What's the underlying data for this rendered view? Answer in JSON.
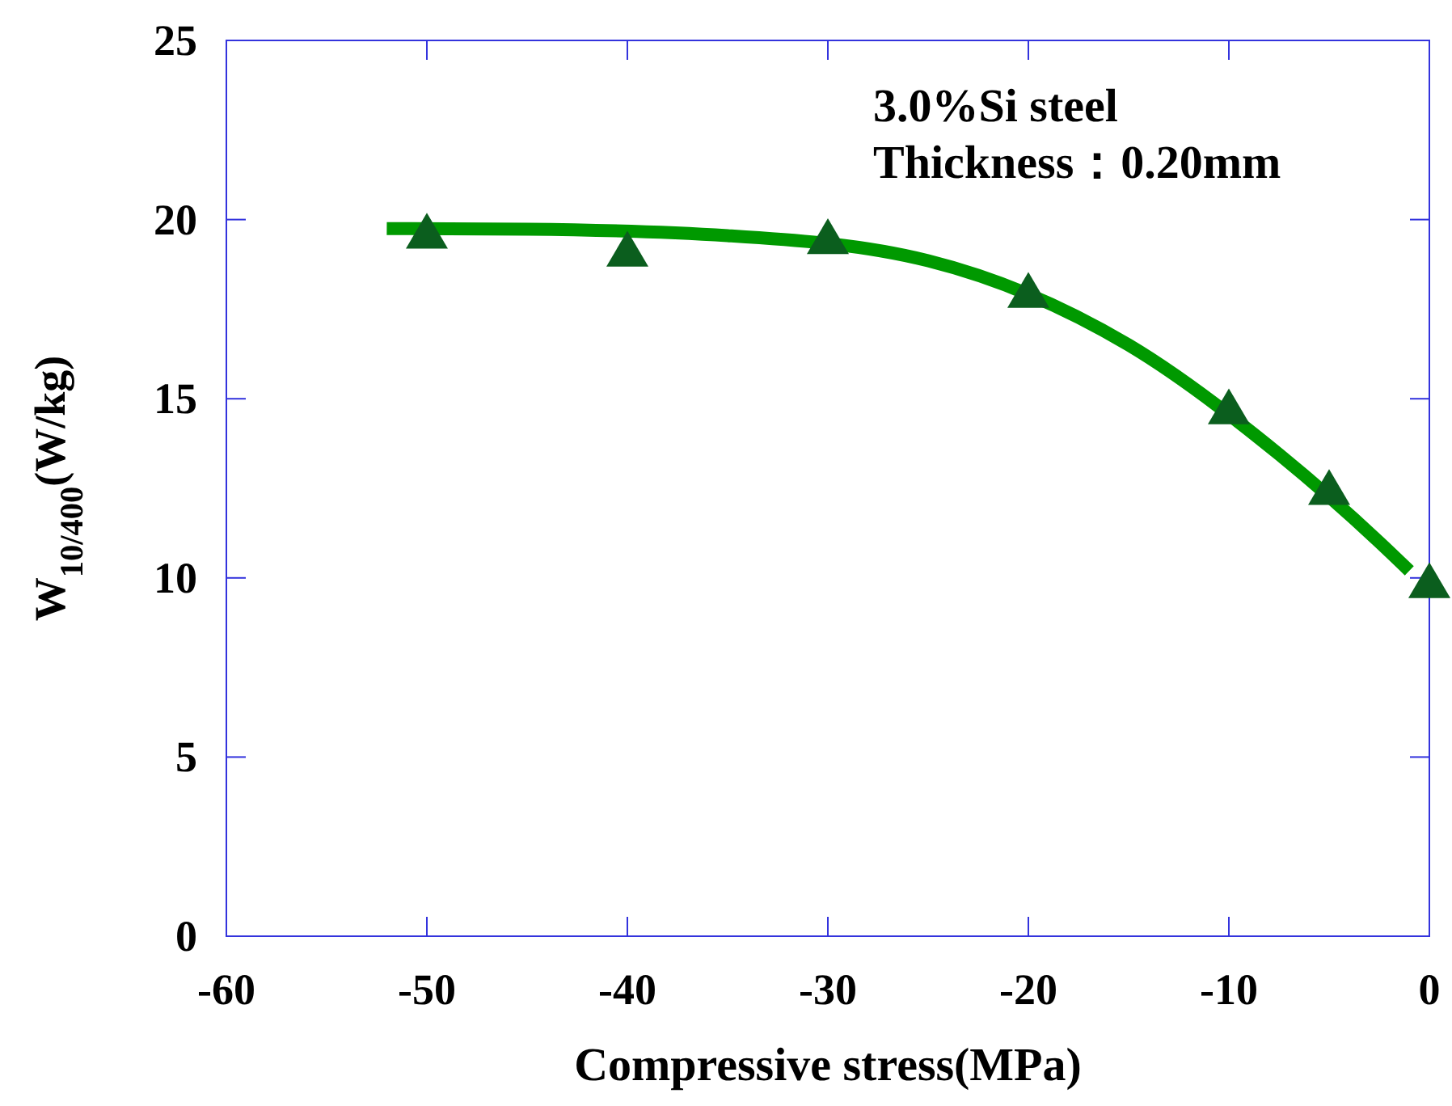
{
  "chart_data": {
    "type": "scatter",
    "xlabel": "Compressive stress(MPa)",
    "ylabel": "W$_{10/400}$(W/kg)",
    "annotations": [
      "3.0%Si steel",
      "Thickness：0.20mm"
    ],
    "xlim": [
      -60,
      0
    ],
    "xticks": [
      -60,
      -50,
      -40,
      -30,
      -20,
      -10,
      0
    ],
    "ylim": [
      0,
      25
    ],
    "yticks": [
      0,
      5,
      10,
      15,
      20,
      25
    ],
    "grid": false,
    "series": [
      {
        "type": "line",
        "color": "#009900",
        "marker": "none",
        "line_style": "solid",
        "x": [
          -52,
          -45,
          -35,
          -25,
          -15,
          -7.5,
          -2.5,
          -1
        ],
        "values": [
          19.75,
          19.73,
          19.55,
          18.85,
          16.5,
          13.45,
          11.0,
          10.2
        ]
      },
      {
        "color": "#0b5e1e",
        "marker": "triangle",
        "x": [
          -50,
          -40,
          -30,
          -20,
          -10,
          -5,
          0
        ],
        "values": [
          19.6,
          19.1,
          19.45,
          17.95,
          14.7,
          12.45,
          9.85
        ]
      }
    ]
  }
}
